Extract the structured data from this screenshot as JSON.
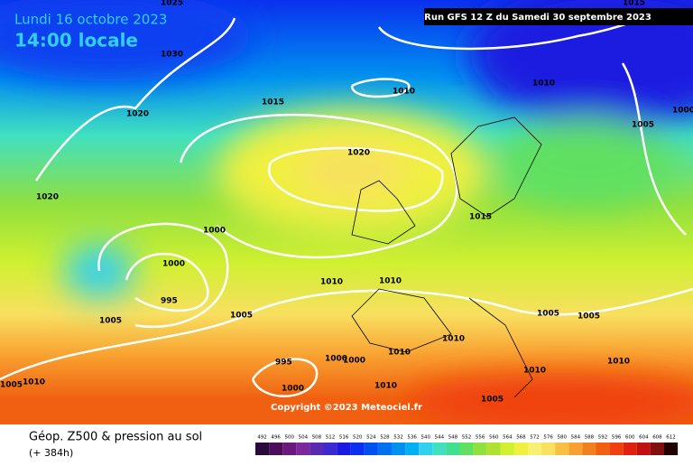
{
  "header": {
    "date": "Lundi 16 octobre 2023",
    "time": "14:00 locale",
    "run": "Run GFS 12 Z du Samedi 30 septembre 2023"
  },
  "isobar_labels": [
    "1025",
    "1030",
    "1020",
    "1015",
    "1010",
    "1010",
    "1015",
    "1005",
    "1000",
    "1020",
    "1020",
    "1000",
    "1015",
    "1000",
    "995",
    "1005",
    "1005",
    "1010",
    "1010",
    "1005",
    "1005",
    "1010",
    "1010",
    "995",
    "1000",
    "1000",
    "1010",
    "1010",
    "1005",
    "1010",
    "1000",
    "1010",
    "1005"
  ],
  "copyright": "Copyright ©2023 Meteociel.fr",
  "footer": {
    "title": "Géop. Z500 & pression au sol",
    "subtitle": "(+ 384h)"
  },
  "colorbar": {
    "ticks": [
      492,
      496,
      500,
      504,
      508,
      512,
      516,
      520,
      524,
      528,
      532,
      536,
      540,
      544,
      548,
      552,
      556,
      560,
      564,
      568,
      572,
      576,
      580,
      584,
      588,
      592,
      596,
      600,
      604,
      608,
      612
    ],
    "colors": [
      "#2a0a3a",
      "#4b0f5a",
      "#6a1a7a",
      "#7a2a9a",
      "#5a2ab0",
      "#3a2ad0",
      "#1a1ae0",
      "#0a30f0",
      "#0050f0",
      "#0070f0",
      "#0090f0",
      "#00b0f0",
      "#30d0f0",
      "#40e0c0",
      "#40e090",
      "#60e060",
      "#90e040",
      "#b0e030",
      "#d0f030",
      "#f0f040",
      "#f8f070",
      "#f8e060",
      "#f8c040",
      "#f8a030",
      "#f08020",
      "#f06010",
      "#f04010",
      "#e02010",
      "#c01010",
      "#801010",
      "#200000"
    ]
  }
}
